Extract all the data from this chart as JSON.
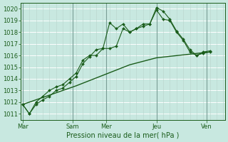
{
  "bg_color": "#c8e8e0",
  "grid_color_h": "#b0d0c8",
  "grid_color_v_major": "#a0b8b0",
  "line_color": "#1a5c1a",
  "xlabel": "Pression niveau de la mer( hPa )",
  "ylim": [
    1010.5,
    1020.5
  ],
  "yticks": [
    1011,
    1012,
    1013,
    1014,
    1015,
    1016,
    1017,
    1018,
    1019,
    1020
  ],
  "day_labels": [
    "Mar",
    "Sam",
    "Mer",
    "Jeu",
    "Ven"
  ],
  "day_positions": [
    0,
    3,
    5,
    8,
    11
  ],
  "total_steps": 12,
  "line1_x": [
    0,
    0.4,
    0.8,
    1.2,
    1.6,
    2.0,
    2.4,
    2.8,
    3.2,
    3.6,
    4.0,
    4.4,
    4.8,
    5.2,
    5.6,
    6.0,
    6.4,
    6.8,
    7.2,
    7.6,
    8.0,
    8.4,
    8.8,
    9.2,
    9.6,
    10.0,
    10.4,
    10.8,
    11.2
  ],
  "line1_y": [
    1011.8,
    1011.0,
    1011.8,
    1012.2,
    1012.5,
    1013.0,
    1013.2,
    1013.7,
    1014.2,
    1015.3,
    1015.9,
    1016.5,
    1016.6,
    1018.8,
    1018.3,
    1018.7,
    1018.0,
    1018.3,
    1018.7,
    1018.7,
    1020.1,
    1019.8,
    1019.1,
    1018.1,
    1017.4,
    1016.5,
    1016.0,
    1016.3,
    1016.4
  ],
  "line2_x": [
    0,
    0.4,
    0.8,
    1.2,
    1.6,
    2.0,
    2.4,
    2.8,
    3.2,
    3.6,
    4.0,
    4.4,
    4.8,
    5.2,
    5.6,
    6.0,
    6.4,
    6.8,
    7.2,
    7.6,
    8.0,
    8.4,
    8.8,
    9.2,
    9.6,
    10.0,
    10.4,
    10.8,
    11.2
  ],
  "line2_y": [
    1011.8,
    1011.0,
    1012.0,
    1012.5,
    1013.0,
    1013.3,
    1013.5,
    1014.0,
    1014.5,
    1015.6,
    1016.0,
    1016.0,
    1016.6,
    1016.6,
    1016.8,
    1018.3,
    1018.0,
    1018.3,
    1018.5,
    1018.7,
    1019.9,
    1019.1,
    1019.0,
    1018.0,
    1017.3,
    1016.3,
    1016.0,
    1016.2,
    1016.3
  ],
  "line3_x": [
    0,
    3.2,
    6.4,
    8.0,
    11.2
  ],
  "line3_y": [
    1011.8,
    1013.4,
    1015.2,
    1015.8,
    1016.3
  ],
  "xlabel_fontsize": 7,
  "tick_fontsize": 6
}
